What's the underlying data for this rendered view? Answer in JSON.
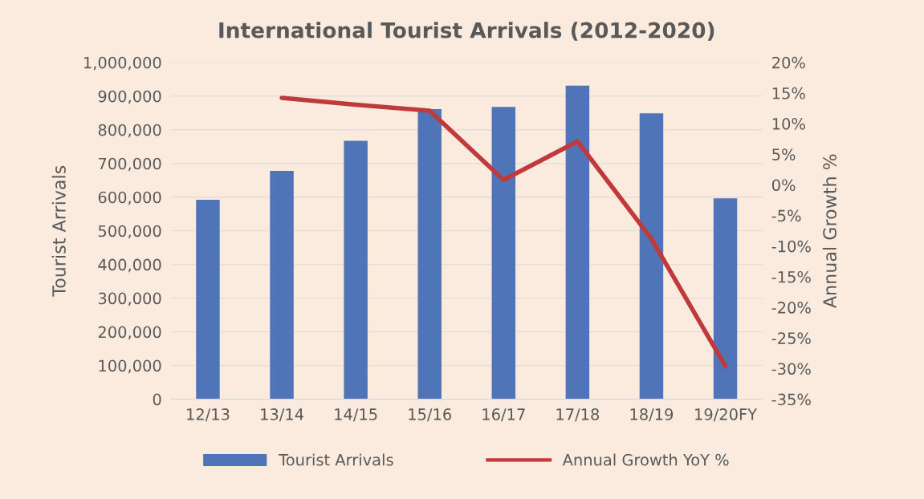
{
  "chart_data": {
    "type": "bar",
    "title": "International Tourist Arrivals (2012-2020)",
    "ylabel": "Tourist Arrivals",
    "y2label": "Annual Growth %",
    "categories": [
      "12/13",
      "13/14",
      "14/15",
      "15/16",
      "16/17",
      "17/18",
      "18/19",
      "19/20FY"
    ],
    "series": [
      {
        "name": "Tourist Arrivals",
        "color": "#4f74b8",
        "values": [
          592000,
          678000,
          767000,
          861000,
          868000,
          931000,
          849000,
          596000
        ]
      },
      {
        "name": "Annual Growth YoY %",
        "type": "line",
        "axis": "y2",
        "color": "#c0393b",
        "values": [
          null,
          14.2,
          13.1,
          12.1,
          0.8,
          7.1,
          -8.8,
          -29.6
        ]
      }
    ],
    "ylim": [
      0,
      1000000
    ],
    "yticks": [
      {
        "value": 0,
        "label": "0"
      },
      {
        "value": 100000,
        "label": "100,000"
      },
      {
        "value": 200000,
        "label": "200,000"
      },
      {
        "value": 300000,
        "label": "300,000"
      },
      {
        "value": 400000,
        "label": "400,000"
      },
      {
        "value": 500000,
        "label": "500,000"
      },
      {
        "value": 600000,
        "label": "600,000"
      },
      {
        "value": 700000,
        "label": "700,000"
      },
      {
        "value": 800000,
        "label": "800,000"
      },
      {
        "value": 900000,
        "label": "900,000"
      },
      {
        "value": 1000000,
        "label": "1,000,000"
      }
    ],
    "y2lim": [
      -35,
      20
    ],
    "y2ticks": [
      {
        "value": -35,
        "label": "-35%"
      },
      {
        "value": -30,
        "label": "-30%"
      },
      {
        "value": -25,
        "label": "-25%"
      },
      {
        "value": -20,
        "label": "-20%"
      },
      {
        "value": -15,
        "label": "-15%"
      },
      {
        "value": -10,
        "label": "-10%"
      },
      {
        "value": -5,
        "label": "-5%"
      },
      {
        "value": 0,
        "label": "0%"
      },
      {
        "value": 5,
        "label": "5%"
      },
      {
        "value": 10,
        "label": "10%"
      },
      {
        "value": 15,
        "label": "15%"
      },
      {
        "value": 20,
        "label": "20%"
      }
    ],
    "grid": "y",
    "legend": "bottom"
  }
}
